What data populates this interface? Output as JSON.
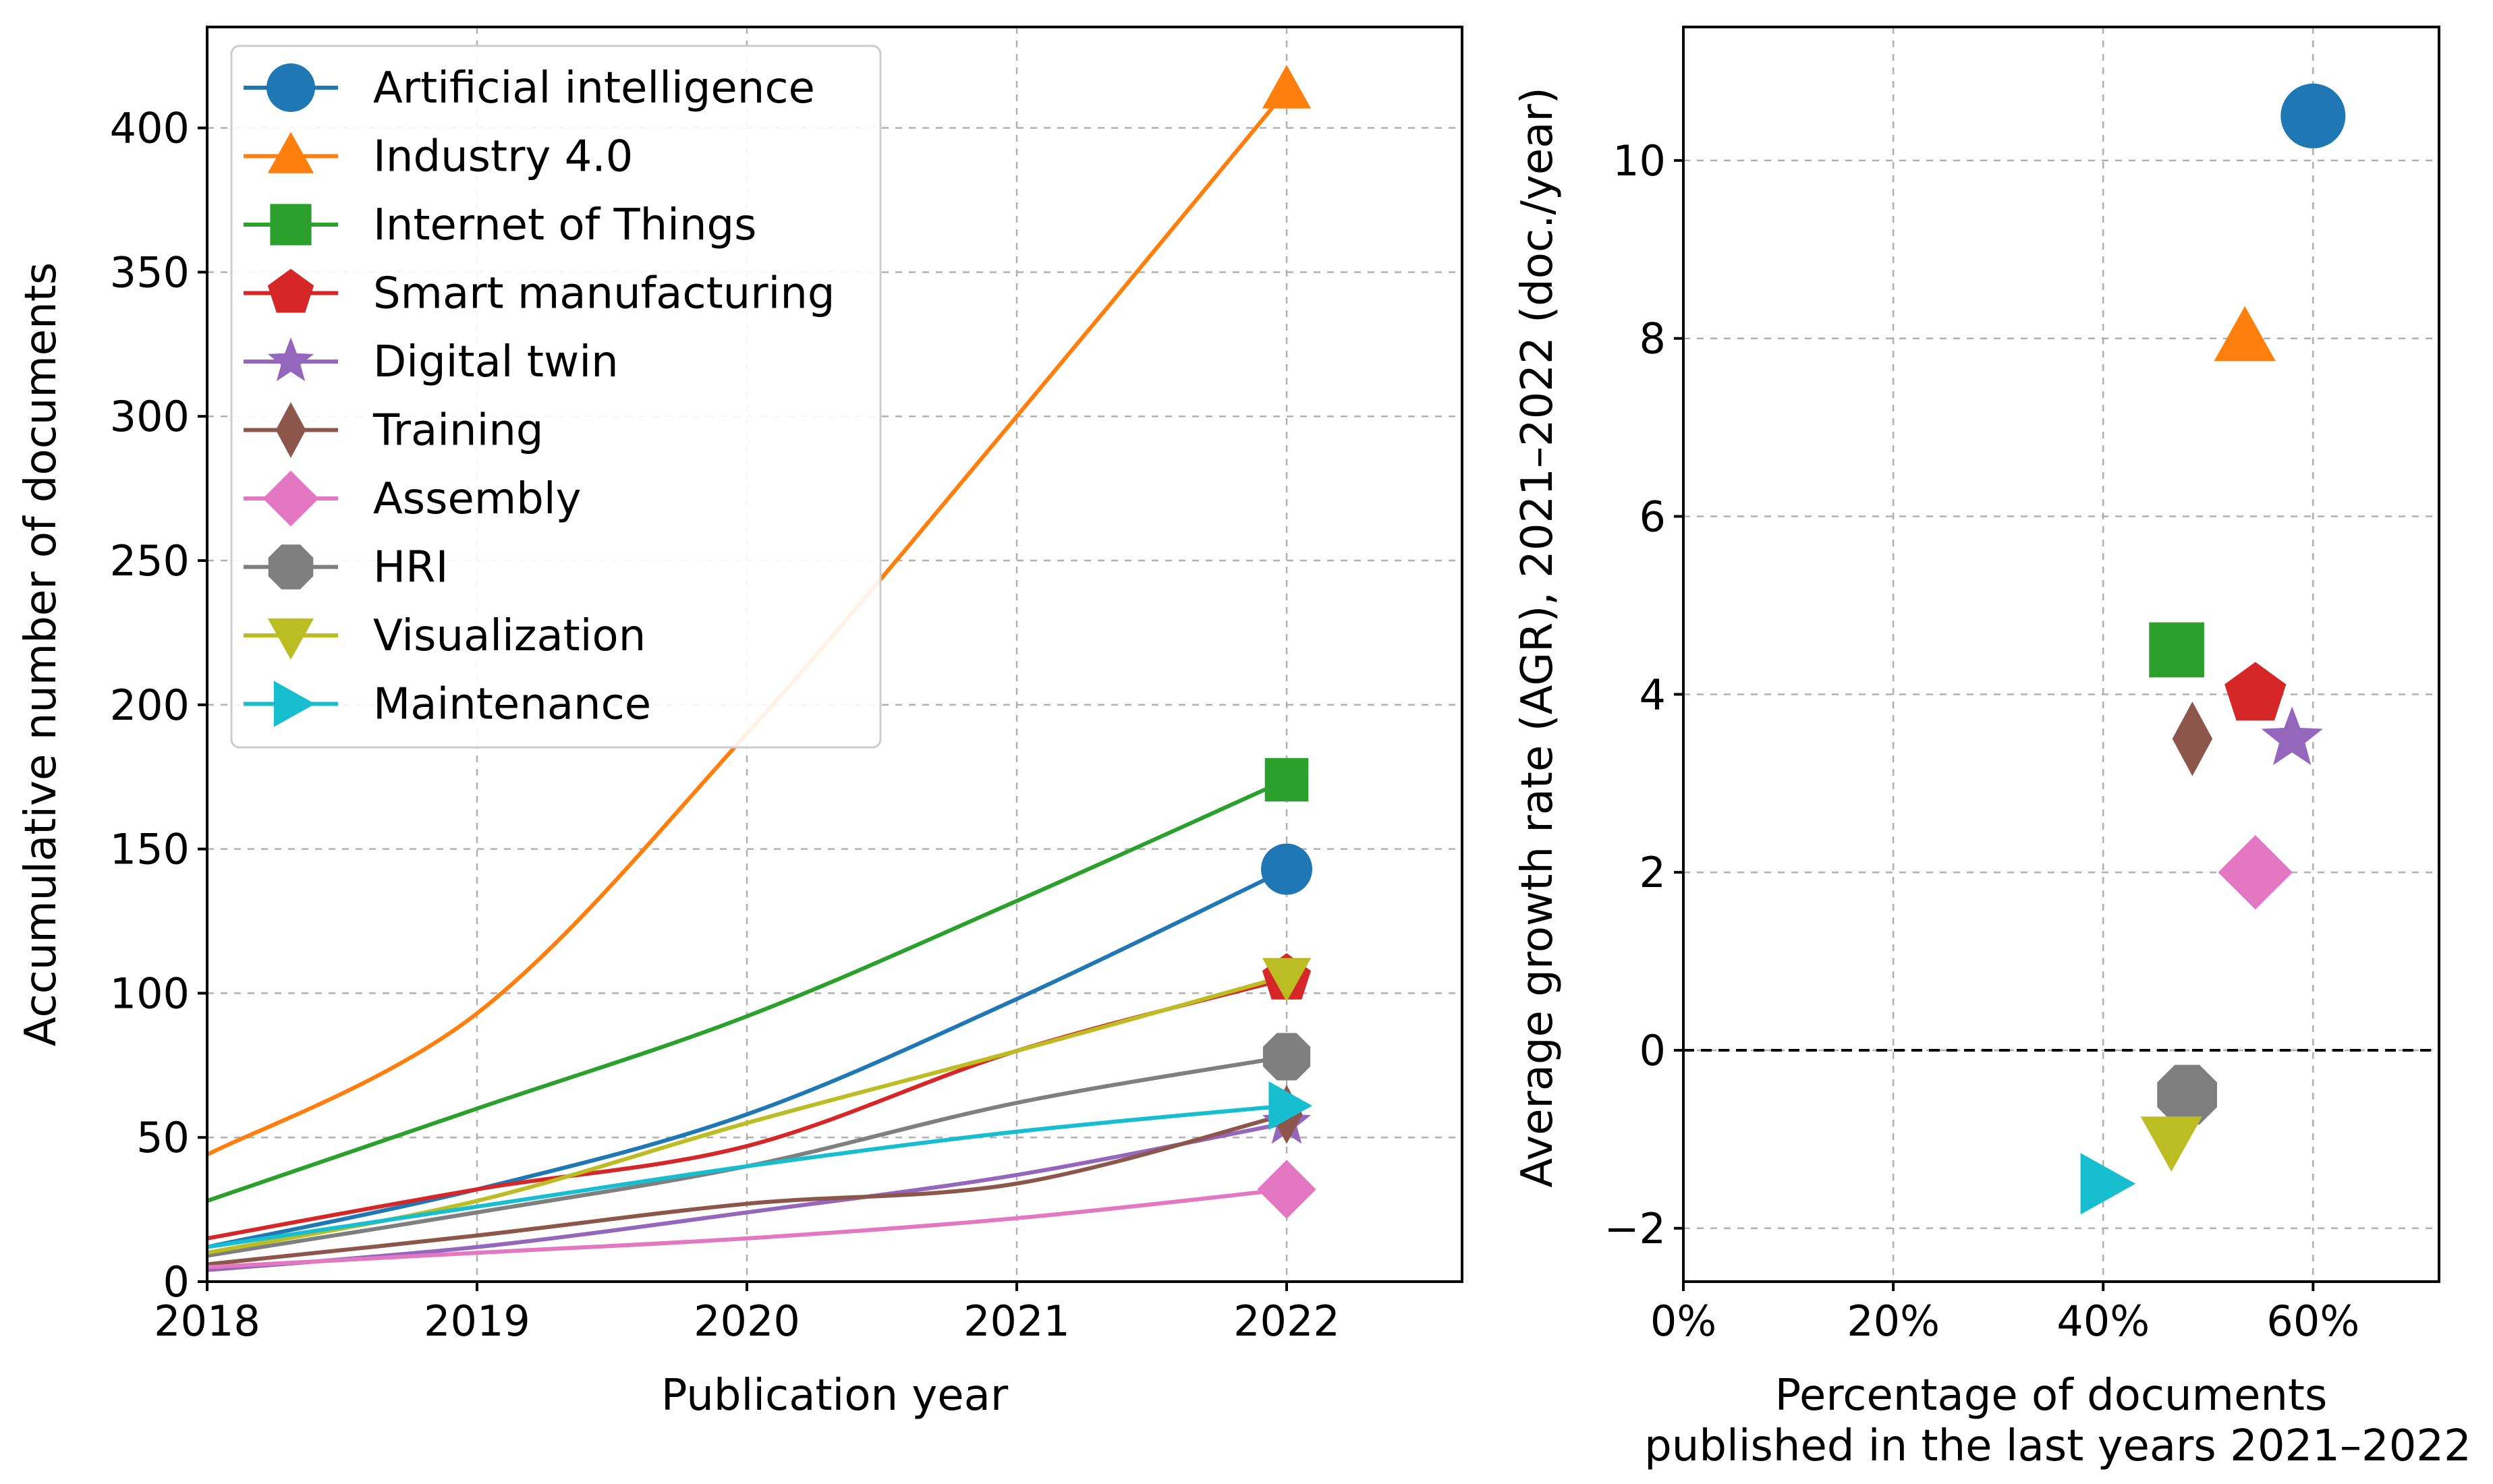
{
  "chart_data": [
    {
      "type": "line",
      "xlabel": "Publication year",
      "ylabel": "Accumulative number of documents",
      "xlim": [
        2018,
        2022.65
      ],
      "ylim": [
        0,
        435
      ],
      "xticks": [
        2018,
        2019,
        2020,
        2021,
        2022
      ],
      "yticks": [
        0,
        50,
        100,
        150,
        200,
        250,
        300,
        350,
        400
      ],
      "grid": true,
      "legend_position": "top-left",
      "x": [
        2018,
        2019,
        2020,
        2021,
        2022
      ],
      "series": [
        {
          "name": "Artificial intelligence",
          "color": "#1f77b4",
          "marker": "circle",
          "values": [
            12,
            32,
            58,
            98,
            143
          ]
        },
        {
          "name": "Industry 4.0",
          "color": "#ff7f0e",
          "marker": "triangle-up",
          "values": [
            44,
            93,
            190,
            300,
            413
          ]
        },
        {
          "name": "Internet of Things",
          "color": "#2ca02c",
          "marker": "square",
          "values": [
            28,
            60,
            92,
            132,
            174
          ]
        },
        {
          "name": "Smart manufacturing",
          "color": "#d62728",
          "marker": "pentagon",
          "values": [
            15,
            32,
            47,
            80,
            105
          ]
        },
        {
          "name": "Digital twin",
          "color": "#9467bd",
          "marker": "star",
          "values": [
            4,
            12,
            24,
            37,
            55
          ]
        },
        {
          "name": "Training",
          "color": "#8c564b",
          "marker": "diamond",
          "values": [
            6,
            16,
            27,
            34,
            58
          ]
        },
        {
          "name": "Assembly",
          "color": "#e377c2",
          "marker": "diamond-wide",
          "values": [
            5,
            10,
            15,
            22,
            32
          ]
        },
        {
          "name": "HRI",
          "color": "#7f7f7f",
          "marker": "octagon",
          "values": [
            9,
            24,
            40,
            62,
            78
          ]
        },
        {
          "name": "Visualization",
          "color": "#bcbd22",
          "marker": "triangle-down",
          "values": [
            10,
            28,
            55,
            80,
            106
          ]
        },
        {
          "name": "Maintenance",
          "color": "#17becf",
          "marker": "triangle-right",
          "values": [
            12,
            26,
            40,
            52,
            61
          ]
        }
      ]
    },
    {
      "type": "scatter",
      "xlabel_line1": "Percentage of documents",
      "xlabel_line2": "published in the last years 2021–2022",
      "ylabel": "Average growth rate (AGR), 2021–2022 (doc./year)",
      "xlim": [
        0,
        72
      ],
      "ylim": [
        -2.6,
        11.5
      ],
      "xticks": [
        0,
        20,
        40,
        60
      ],
      "xtick_labels": [
        "0%",
        "20%",
        "40%",
        "60%"
      ],
      "yticks": [
        -2,
        0,
        2,
        4,
        6,
        8,
        10
      ],
      "ytick_labels": [
        "−2",
        "0",
        "2",
        "4",
        "6",
        "8",
        "10"
      ],
      "grid": true,
      "reference_line_y": 0,
      "points": [
        {
          "name": "Artificial intelligence",
          "x": 60,
          "y": 10.5
        },
        {
          "name": "Industry 4.0",
          "x": 53.5,
          "y": 8.0
        },
        {
          "name": "Internet of Things",
          "x": 47,
          "y": 4.5
        },
        {
          "name": "Smart manufacturing",
          "x": 54.5,
          "y": 4.0
        },
        {
          "name": "Digital twin",
          "x": 58,
          "y": 3.5
        },
        {
          "name": "Training",
          "x": 48.5,
          "y": 3.5
        },
        {
          "name": "Assembly",
          "x": 54.5,
          "y": 2.0
        },
        {
          "name": "HRI",
          "x": 48,
          "y": -0.5
        },
        {
          "name": "Visualization",
          "x": 46.5,
          "y": -1.0
        },
        {
          "name": "Maintenance",
          "x": 40,
          "y": -1.5
        }
      ]
    }
  ]
}
